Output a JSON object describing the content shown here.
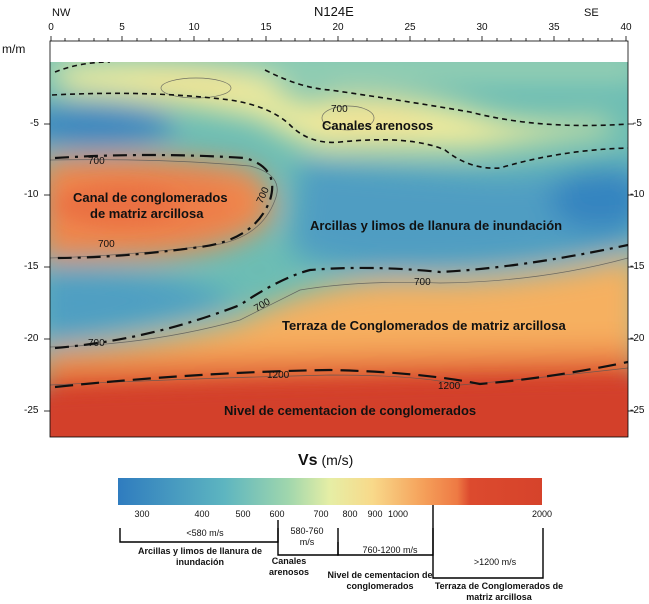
{
  "header": {
    "direction_left": "NW",
    "profile_name": "N124E",
    "direction_right": "SE"
  },
  "axes": {
    "y_unit": "m/m",
    "x_ticks": [
      "0",
      "5",
      "10",
      "15",
      "20",
      "25",
      "30",
      "35",
      "40"
    ],
    "y_ticks_left": [
      "-5",
      "-10",
      "-15",
      "-20",
      "-25"
    ],
    "y_ticks_right": [
      "-5",
      "-10",
      "-15",
      "-20",
      "-25"
    ]
  },
  "regions": {
    "canales": "Canales arenosos",
    "canal_line1": "Canal de conglomerados",
    "canal_line2": "de matriz arcillosa",
    "arcillas": "Arcillas y limos de llanura de inundación",
    "terraza": "Terraza de Conglomerados de matriz arcillosa",
    "nivel": "Nivel de cementacion de conglomerados"
  },
  "contour_labels": [
    "700",
    "700",
    "700",
    "700",
    "700",
    "700",
    "700",
    "1200",
    "1200"
  ],
  "colorbar": {
    "title_var": "Vs",
    "title_unit": "(m/s)",
    "ticks": [
      "300",
      "400",
      "500",
      "600",
      "700",
      "800",
      "900",
      "1000",
      "2000"
    ],
    "colors": {
      "low": "#2b7bba",
      "mid_low": "#7ec8b0",
      "mid": "#f4eeaa",
      "mid_high": "#f5a45a",
      "high": "#d7402a"
    }
  },
  "legend": {
    "ranges": [
      "<580 m/s",
      "580-760 m/s",
      "760-1200 m/s",
      ">1200 m/s"
    ],
    "labels": [
      "Arcillas y limos de llanura de inundación",
      "Canales arenosos",
      "Nivel de cementacion de conglomerados",
      "Terraza de Conglomerados de matriz arcillosa"
    ]
  }
}
